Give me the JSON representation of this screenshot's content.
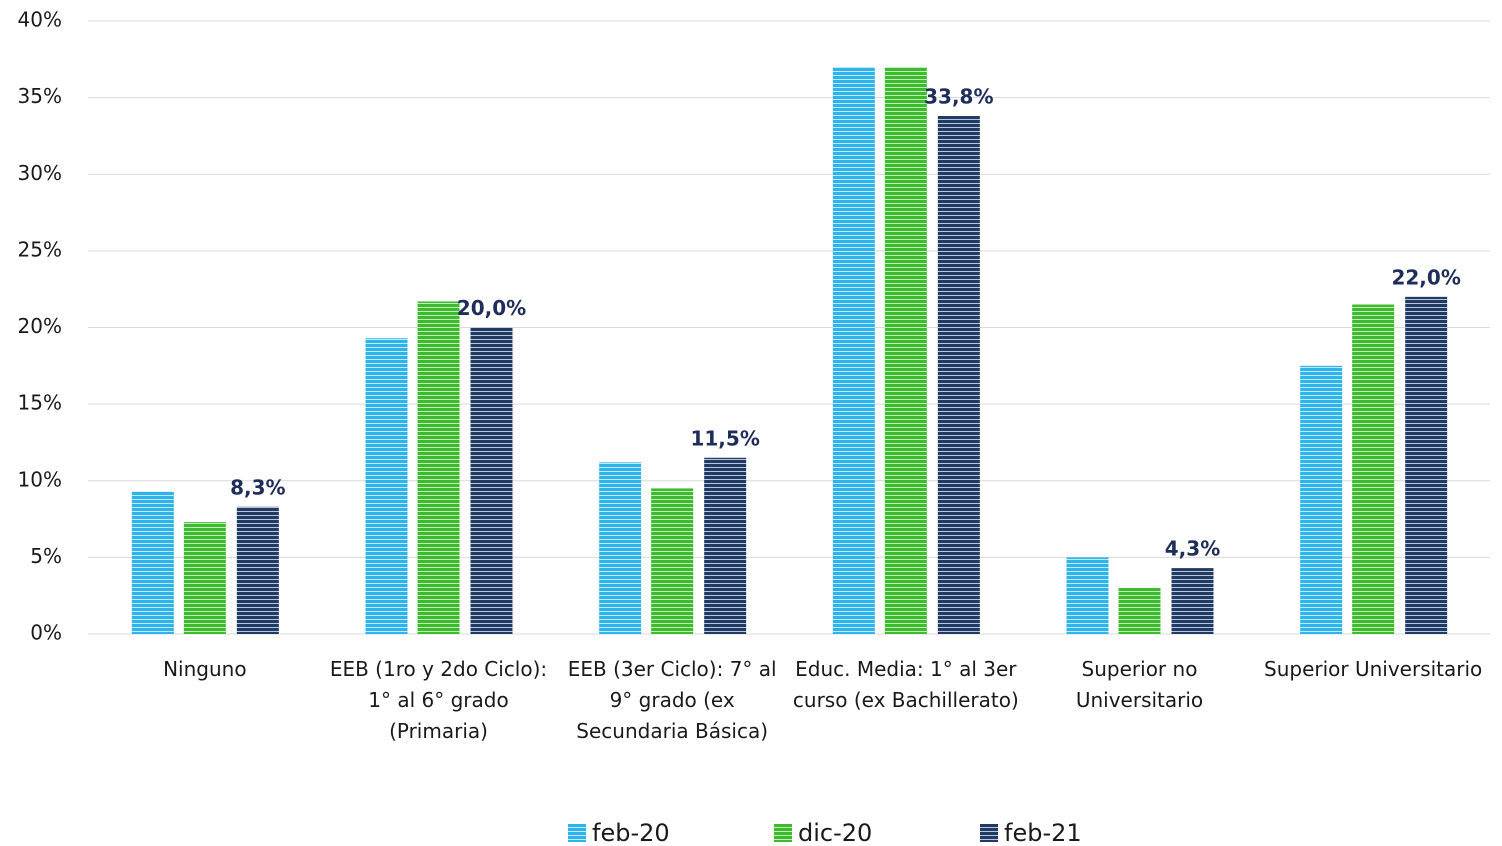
{
  "chart_data": {
    "type": "bar",
    "categories": [
      "Ninguno",
      "EEB (1ro y 2do Ciclo): 1° al 6° grado (Primaria)",
      "EEB (3er Ciclo): 7° al 9° grado (ex Secundaria Básica)",
      "Educ. Media: 1° al 3er curso (ex Bachillerato)",
      "Superior no Universitario",
      "Superior Universitario"
    ],
    "series": [
      {
        "name": "feb-20",
        "color": "#2eb4ea",
        "values": [
          9.3,
          19.3,
          11.2,
          37.0,
          5.0,
          17.5
        ]
      },
      {
        "name": "dic-20",
        "color": "#3cbc2c",
        "values": [
          7.3,
          21.7,
          9.5,
          37.0,
          3.0,
          21.5
        ]
      },
      {
        "name": "feb-21",
        "color": "#1f3b66",
        "values": [
          8.3,
          20.0,
          11.5,
          33.8,
          4.3,
          22.0
        ],
        "value_labels": [
          "8,3%",
          "20,0%",
          "11,5%",
          "33,8%",
          "4,3%",
          "22,0%"
        ]
      }
    ],
    "ylim": [
      0,
      40
    ],
    "yticks": [
      {
        "value": 0,
        "label": "0%"
      },
      {
        "value": 5,
        "label": "5%"
      },
      {
        "value": 10,
        "label": "10%"
      },
      {
        "value": 15,
        "label": "15%"
      },
      {
        "value": 20,
        "label": "20%"
      },
      {
        "value": 25,
        "label": "25%"
      },
      {
        "value": 30,
        "label": "30%"
      },
      {
        "value": 35,
        "label": "35%"
      },
      {
        "value": 40,
        "label": "40%"
      }
    ],
    "grid": true,
    "legend": "bottom"
  }
}
